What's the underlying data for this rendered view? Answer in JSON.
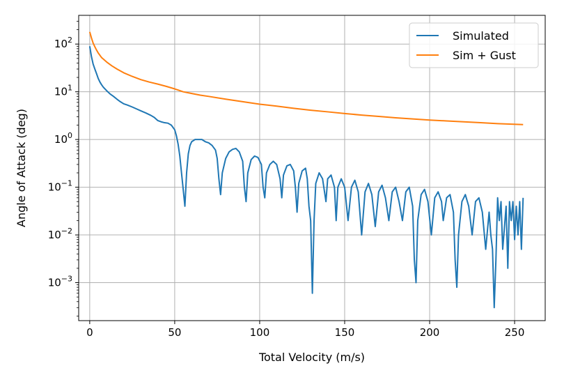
{
  "chart_data": {
    "type": "line",
    "title": "",
    "xlabel": "Total Velocity (m/s)",
    "ylabel": "Angle of Attack (deg)",
    "xlim": [
      -6.5,
      268
    ],
    "ylim": [
      0.00016,
      400
    ],
    "yscale": "log",
    "grid": true,
    "legend_position": "top-right",
    "x_ticks": [
      0,
      50,
      100,
      150,
      200,
      250
    ],
    "x_tick_labels": [
      "0",
      "50",
      "100",
      "150",
      "200",
      "250"
    ],
    "y_ticks": [
      0.001,
      0.01,
      0.1,
      1,
      10,
      100
    ],
    "y_tick_labels": [
      {
        "base": "10",
        "exp": "−3"
      },
      {
        "base": "10",
        "exp": "−2"
      },
      {
        "base": "10",
        "exp": "−1"
      },
      {
        "base": "10",
        "exp": "0"
      },
      {
        "base": "10",
        "exp": "1"
      },
      {
        "base": "10",
        "exp": "2"
      }
    ],
    "series": [
      {
        "name": "Simulated",
        "color": "#1f77b4",
        "points": [
          [
            0,
            90
          ],
          [
            1,
            55
          ],
          [
            2,
            38
          ],
          [
            3,
            30
          ],
          [
            4,
            24
          ],
          [
            5,
            19
          ],
          [
            6,
            16
          ],
          [
            7,
            14
          ],
          [
            8,
            12.5
          ],
          [
            10,
            10.5
          ],
          [
            12,
            9
          ],
          [
            14,
            8
          ],
          [
            16,
            7
          ],
          [
            18,
            6.2
          ],
          [
            20,
            5.6
          ],
          [
            22,
            5.3
          ],
          [
            25,
            4.8
          ],
          [
            28,
            4.3
          ],
          [
            30,
            4.0
          ],
          [
            33,
            3.6
          ],
          [
            36,
            3.2
          ],
          [
            38,
            2.9
          ],
          [
            40,
            2.5
          ],
          [
            42,
            2.35
          ],
          [
            44,
            2.25
          ],
          [
            46,
            2.2
          ],
          [
            48,
            2.0
          ],
          [
            50,
            1.6
          ],
          [
            51,
            1.2
          ],
          [
            52,
            0.8
          ],
          [
            53,
            0.45
          ],
          [
            54,
            0.2
          ],
          [
            55,
            0.09
          ],
          [
            56,
            0.04
          ],
          [
            57,
            0.2
          ],
          [
            58,
            0.5
          ],
          [
            59,
            0.75
          ],
          [
            60,
            0.9
          ],
          [
            62,
            1.0
          ],
          [
            64,
            1.0
          ],
          [
            66,
            1.0
          ],
          [
            68,
            0.9
          ],
          [
            70,
            0.85
          ],
          [
            72,
            0.75
          ],
          [
            74,
            0.6
          ],
          [
            75,
            0.4
          ],
          [
            76,
            0.15
          ],
          [
            77,
            0.07
          ],
          [
            78,
            0.2
          ],
          [
            80,
            0.4
          ],
          [
            82,
            0.55
          ],
          [
            84,
            0.62
          ],
          [
            86,
            0.65
          ],
          [
            88,
            0.55
          ],
          [
            90,
            0.35
          ],
          [
            91,
            0.1
          ],
          [
            92,
            0.05
          ],
          [
            93,
            0.2
          ],
          [
            95,
            0.38
          ],
          [
            97,
            0.45
          ],
          [
            99,
            0.42
          ],
          [
            101,
            0.3
          ],
          [
            102,
            0.1
          ],
          [
            103,
            0.06
          ],
          [
            104,
            0.2
          ],
          [
            106,
            0.3
          ],
          [
            108,
            0.35
          ],
          [
            110,
            0.3
          ],
          [
            112,
            0.15
          ],
          [
            113,
            0.06
          ],
          [
            114,
            0.18
          ],
          [
            116,
            0.28
          ],
          [
            118,
            0.3
          ],
          [
            120,
            0.22
          ],
          [
            121,
            0.1
          ],
          [
            122,
            0.03
          ],
          [
            123,
            0.12
          ],
          [
            125,
            0.22
          ],
          [
            127,
            0.25
          ],
          [
            128,
            0.15
          ],
          [
            129,
            0.04
          ],
          [
            130,
            0.02
          ],
          [
            131,
            0.0006
          ],
          [
            132,
            0.02
          ],
          [
            133,
            0.12
          ],
          [
            135,
            0.2
          ],
          [
            137,
            0.15
          ],
          [
            139,
            0.05
          ],
          [
            140,
            0.15
          ],
          [
            142,
            0.18
          ],
          [
            144,
            0.1
          ],
          [
            145,
            0.02
          ],
          [
            146,
            0.1
          ],
          [
            148,
            0.15
          ],
          [
            150,
            0.1
          ],
          [
            152,
            0.02
          ],
          [
            154,
            0.1
          ],
          [
            156,
            0.14
          ],
          [
            158,
            0.08
          ],
          [
            160,
            0.01
          ],
          [
            162,
            0.08
          ],
          [
            164,
            0.12
          ],
          [
            166,
            0.07
          ],
          [
            168,
            0.015
          ],
          [
            170,
            0.08
          ],
          [
            172,
            0.11
          ],
          [
            174,
            0.06
          ],
          [
            176,
            0.02
          ],
          [
            178,
            0.08
          ],
          [
            180,
            0.1
          ],
          [
            182,
            0.05
          ],
          [
            184,
            0.02
          ],
          [
            186,
            0.08
          ],
          [
            188,
            0.1
          ],
          [
            190,
            0.04
          ],
          [
            191,
            0.003
          ],
          [
            192,
            0.001
          ],
          [
            193,
            0.02
          ],
          [
            195,
            0.07
          ],
          [
            197,
            0.09
          ],
          [
            199,
            0.05
          ],
          [
            201,
            0.01
          ],
          [
            203,
            0.06
          ],
          [
            205,
            0.08
          ],
          [
            207,
            0.05
          ],
          [
            208,
            0.02
          ],
          [
            210,
            0.06
          ],
          [
            212,
            0.07
          ],
          [
            214,
            0.03
          ],
          [
            215,
            0.003
          ],
          [
            216,
            0.0008
          ],
          [
            217,
            0.01
          ],
          [
            219,
            0.05
          ],
          [
            221,
            0.07
          ],
          [
            223,
            0.04
          ],
          [
            225,
            0.01
          ],
          [
            227,
            0.05
          ],
          [
            229,
            0.06
          ],
          [
            231,
            0.03
          ],
          [
            233,
            0.005
          ],
          [
            235,
            0.03
          ],
          [
            236,
            0.01
          ],
          [
            237,
            0.005
          ],
          [
            238,
            0.0003
          ],
          [
            239,
            0.003
          ],
          [
            240,
            0.06
          ],
          [
            241,
            0.02
          ],
          [
            242,
            0.05
          ],
          [
            243,
            0.005
          ],
          [
            245,
            0.04
          ],
          [
            246,
            0.002
          ],
          [
            247,
            0.05
          ],
          [
            248,
            0.02
          ],
          [
            249,
            0.05
          ],
          [
            250,
            0.008
          ],
          [
            251,
            0.04
          ],
          [
            252,
            0.01
          ],
          [
            253,
            0.05
          ],
          [
            254,
            0.005
          ],
          [
            255,
            0.06
          ]
        ]
      },
      {
        "name": "Sim + Gust",
        "color": "#ff7f0e",
        "points": [
          [
            0,
            180
          ],
          [
            1,
            135
          ],
          [
            2,
            105
          ],
          [
            3,
            88
          ],
          [
            4,
            75
          ],
          [
            5,
            65
          ],
          [
            7,
            52
          ],
          [
            10,
            42
          ],
          [
            13,
            35
          ],
          [
            16,
            30
          ],
          [
            20,
            25
          ],
          [
            25,
            21
          ],
          [
            30,
            18
          ],
          [
            35,
            16
          ],
          [
            40,
            14.5
          ],
          [
            45,
            13
          ],
          [
            50,
            11.5
          ],
          [
            55,
            10
          ],
          [
            60,
            9.2
          ],
          [
            65,
            8.5
          ],
          [
            70,
            8
          ],
          [
            80,
            7
          ],
          [
            90,
            6.2
          ],
          [
            100,
            5.5
          ],
          [
            110,
            5
          ],
          [
            120,
            4.5
          ],
          [
            130,
            4.1
          ],
          [
            140,
            3.8
          ],
          [
            150,
            3.5
          ],
          [
            160,
            3.25
          ],
          [
            170,
            3.05
          ],
          [
            180,
            2.85
          ],
          [
            190,
            2.7
          ],
          [
            200,
            2.55
          ],
          [
            210,
            2.45
          ],
          [
            220,
            2.35
          ],
          [
            230,
            2.25
          ],
          [
            240,
            2.15
          ],
          [
            255,
            2.05
          ]
        ]
      }
    ]
  }
}
